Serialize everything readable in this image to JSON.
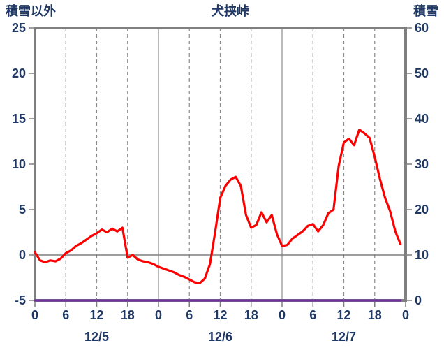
{
  "chart_data": {
    "type": "line",
    "title": "犬挟峠",
    "x_axis": {
      "unit": "hour",
      "range": [
        0,
        72
      ],
      "tick_interval_hours": 6,
      "tick_labels": [
        "0",
        "6",
        "12",
        "18",
        "0",
        "6",
        "12",
        "18",
        "0",
        "6",
        "12",
        "18",
        "0"
      ],
      "date_labels": [
        "12/5",
        "12/6",
        "12/7"
      ]
    },
    "y_axis_left": {
      "label": "積雪以外",
      "min": -5,
      "max": 25,
      "ticks": [
        25,
        20,
        15,
        10,
        5,
        0,
        -5
      ]
    },
    "y_axis_right": {
      "label": "積雪",
      "min": 0,
      "max": 60,
      "ticks": [
        60,
        50,
        40,
        30,
        20,
        10,
        0
      ]
    },
    "series": [
      {
        "name": "積雪以外",
        "axis": "left",
        "color": "#FF0000",
        "values": [
          0.3,
          -0.6,
          -0.8,
          -0.6,
          -0.7,
          -0.4,
          0.2,
          0.5,
          1.0,
          1.3,
          1.7,
          2.1,
          2.4,
          2.8,
          2.5,
          2.9,
          2.6,
          3.0,
          -0.3,
          0.0,
          -0.5,
          -0.7,
          -0.8,
          -1.0,
          -1.3,
          -1.5,
          -1.7,
          -1.9,
          -2.2,
          -2.4,
          -2.7,
          -3.0,
          -3.1,
          -2.6,
          -1.0,
          2.5,
          6.3,
          7.6,
          8.3,
          8.6,
          7.6,
          4.4,
          3.0,
          3.3,
          4.7,
          3.6,
          4.4,
          2.3,
          1.0,
          1.1,
          1.8,
          2.2,
          2.6,
          3.2,
          3.4,
          2.6,
          3.3,
          4.6,
          5.0,
          9.8,
          12.4,
          12.8,
          12.1,
          13.8,
          13.4,
          12.9,
          10.8,
          8.4,
          6.3,
          4.8,
          2.6,
          1.2
        ]
      },
      {
        "name": "積雪",
        "axis": "right",
        "color": "#7030A0",
        "values": [
          0,
          0,
          0,
          0,
          0,
          0,
          0,
          0,
          0,
          0,
          0,
          0,
          0,
          0,
          0,
          0,
          0,
          0,
          0,
          0,
          0,
          0,
          0,
          0,
          0,
          0,
          0,
          0,
          0,
          0,
          0,
          0,
          0,
          0,
          0,
          0,
          0,
          0,
          0,
          0,
          0,
          0,
          0,
          0,
          0,
          0,
          0,
          0,
          0,
          0,
          0,
          0,
          0,
          0,
          0,
          0,
          0,
          0,
          0,
          0,
          0,
          0,
          0,
          0,
          0,
          0,
          0,
          0,
          0,
          0,
          0,
          0
        ]
      }
    ],
    "colors": {
      "text": "#1F3864",
      "border": "#7F7F7F",
      "grid": "#8C8C8C",
      "zero_line": "#7F7F7F"
    },
    "legend": "none",
    "grid": "vertical-only"
  }
}
